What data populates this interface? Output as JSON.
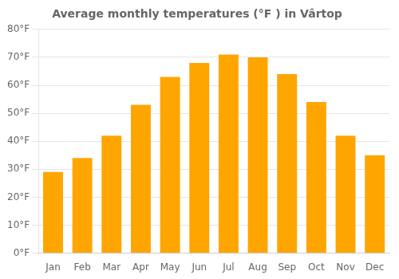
{
  "chart_data": {
    "type": "bar",
    "title": "Average monthly temperatures (°F ) in Vârtop",
    "categories": [
      "Jan",
      "Feb",
      "Mar",
      "Apr",
      "May",
      "Jun",
      "Jul",
      "Aug",
      "Sep",
      "Oct",
      "Nov",
      "Dec"
    ],
    "values": [
      29,
      34,
      42,
      53,
      63,
      68,
      71,
      70,
      64,
      54,
      42,
      35
    ],
    "color": "#FFA500",
    "ylim": [
      0,
      80
    ],
    "yticks": [
      {
        "value": 0,
        "label": "0°F"
      },
      {
        "value": 10,
        "label": "10°F"
      },
      {
        "value": 20,
        "label": "20°F"
      },
      {
        "value": 30,
        "label": "30°F"
      },
      {
        "value": 40,
        "label": "40°F"
      },
      {
        "value": 50,
        "label": "50°F"
      },
      {
        "value": 60,
        "label": "60°F"
      },
      {
        "value": 70,
        "label": "70°F"
      },
      {
        "value": 80,
        "label": "80°F"
      }
    ],
    "grid": true
  }
}
